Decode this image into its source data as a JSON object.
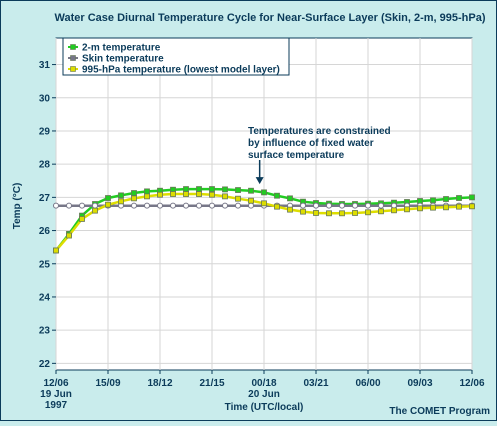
{
  "chart_data": {
    "type": "line",
    "title": "Water Case Diurnal Temperature Cycle for Near-Surface Layer (Skin, 2-m, 995-hPa)",
    "xlabel": "Time (UTC/local)",
    "ylabel": "Temp (°C)",
    "ylim": [
      21.8,
      31.8
    ],
    "yticks": [
      22,
      23,
      24,
      25,
      26,
      27,
      28,
      29,
      30,
      31
    ],
    "xlim": [
      0,
      24
    ],
    "x_tick_labels": [
      "12/06",
      "15/09",
      "18/12",
      "21/15",
      "00/18",
      "03/21",
      "06/00",
      "09/03",
      "12/06"
    ],
    "x_date_labels": [
      {
        "position": 0,
        "lines": [
          "19 Jun",
          "1997"
        ]
      },
      {
        "position": 12,
        "lines": [
          "20 Jun"
        ]
      }
    ],
    "grid": true,
    "legend_position": "top-left",
    "annotation": {
      "lines": [
        "Temperatures are constrained",
        "by influence of fixed water",
        "surface temperature"
      ],
      "arrow_target": {
        "x": 11.75,
        "y": 27.4
      }
    },
    "credit": "The COMET Program",
    "series": [
      {
        "name": "2-m temperature",
        "color": "#22cc22",
        "x": [
          0,
          0.75,
          1.5,
          2.25,
          3,
          3.75,
          4.5,
          5.25,
          6,
          6.75,
          7.5,
          8.25,
          9,
          9.75,
          10.5,
          11.25,
          12,
          12.75,
          13.5,
          14.25,
          15,
          15.75,
          16.5,
          17.25,
          18,
          18.75,
          19.5,
          20.25,
          21,
          21.75,
          22.5,
          23.25,
          24
        ],
        "values": [
          25.4,
          25.9,
          26.45,
          26.8,
          26.98,
          27.06,
          27.13,
          27.18,
          27.2,
          27.23,
          27.25,
          27.25,
          27.25,
          27.24,
          27.22,
          27.2,
          27.15,
          27.05,
          26.97,
          26.87,
          26.83,
          26.81,
          26.8,
          26.8,
          26.81,
          26.82,
          26.84,
          26.86,
          26.89,
          26.91,
          26.95,
          26.98,
          27.0
        ]
      },
      {
        "name": "Skin temperature",
        "color": "#777788",
        "x": [
          0,
          0.75,
          1.5,
          2.25,
          3,
          3.75,
          4.5,
          5.25,
          6,
          6.75,
          7.5,
          8.25,
          9,
          9.75,
          10.5,
          11.25,
          12,
          12.75,
          13.5,
          14.25,
          15,
          15.75,
          16.5,
          17.25,
          18,
          18.75,
          19.5,
          20.25,
          21,
          21.75,
          22.5,
          23.25,
          24
        ],
        "values": [
          26.75,
          26.75,
          26.75,
          26.75,
          26.75,
          26.75,
          26.75,
          26.75,
          26.75,
          26.75,
          26.75,
          26.75,
          26.75,
          26.75,
          26.75,
          26.75,
          26.75,
          26.75,
          26.75,
          26.75,
          26.75,
          26.75,
          26.75,
          26.75,
          26.75,
          26.75,
          26.75,
          26.75,
          26.75,
          26.75,
          26.75,
          26.75,
          26.75
        ]
      },
      {
        "name": "995-hPa temperature (lowest model layer)",
        "color": "#dddd00",
        "x": [
          0,
          0.75,
          1.5,
          2.25,
          3,
          3.75,
          4.5,
          5.25,
          6,
          6.75,
          7.5,
          8.25,
          9,
          9.75,
          10.5,
          11.25,
          12,
          12.75,
          13.5,
          14.25,
          15,
          15.75,
          16.5,
          17.25,
          18,
          18.75,
          19.5,
          20.25,
          21,
          21.75,
          22.5,
          23.25,
          24
        ],
        "values": [
          25.4,
          25.85,
          26.35,
          26.6,
          26.78,
          26.88,
          26.97,
          27.03,
          27.08,
          27.1,
          27.1,
          27.1,
          27.08,
          27.03,
          26.96,
          26.9,
          26.82,
          26.72,
          26.63,
          26.57,
          26.53,
          26.52,
          26.52,
          26.53,
          26.55,
          26.58,
          26.61,
          26.64,
          26.67,
          26.69,
          26.7,
          26.72,
          26.73
        ]
      }
    ]
  }
}
